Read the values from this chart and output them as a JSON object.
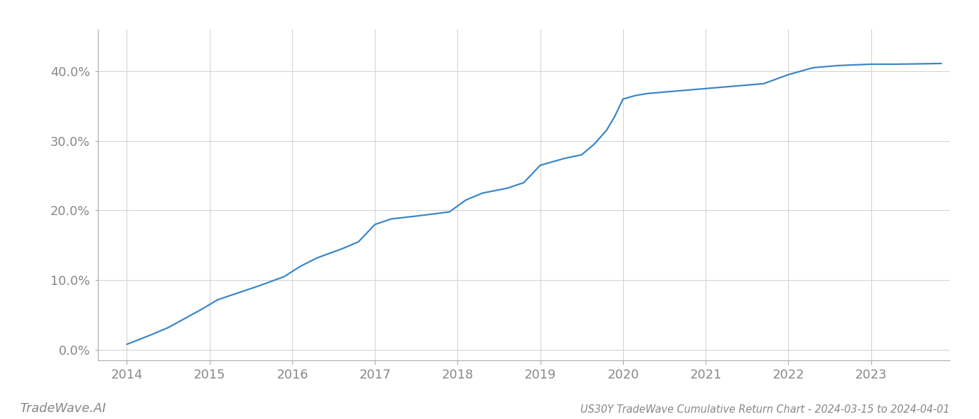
{
  "title": "US30Y TradeWave Cumulative Return Chart - 2024-03-15 to 2024-04-01",
  "watermark": "TradeWave.AI",
  "line_color": "#3a86c8",
  "background_color": "#ffffff",
  "grid_color": "#d0d0d0",
  "x_values": [
    2014.0,
    2014.15,
    2014.3,
    2014.5,
    2014.7,
    2014.9,
    2015.1,
    2015.3,
    2015.6,
    2015.9,
    2016.1,
    2016.3,
    2016.6,
    2016.8,
    2017.0,
    2017.2,
    2017.5,
    2017.7,
    2017.9,
    2018.1,
    2018.3,
    2018.6,
    2018.8,
    2019.0,
    2019.15,
    2019.3,
    2019.5,
    2019.65,
    2019.8,
    2019.9,
    2020.0,
    2020.15,
    2020.3,
    2020.5,
    2020.7,
    2020.9,
    2021.1,
    2021.4,
    2021.7,
    2022.0,
    2022.3,
    2022.6,
    2022.8,
    2023.0,
    2023.3,
    2023.6,
    2023.85
  ],
  "y_values": [
    0.8,
    1.5,
    2.2,
    3.2,
    4.5,
    5.8,
    7.2,
    8.0,
    9.2,
    10.5,
    12.0,
    13.2,
    14.5,
    15.5,
    18.0,
    18.8,
    19.2,
    19.5,
    19.8,
    21.5,
    22.5,
    23.2,
    24.0,
    26.5,
    27.0,
    27.5,
    28.0,
    29.5,
    31.5,
    33.5,
    36.0,
    36.5,
    36.8,
    37.0,
    37.2,
    37.4,
    37.6,
    37.9,
    38.2,
    39.5,
    40.5,
    40.8,
    40.9,
    41.0,
    41.0,
    41.05,
    41.1
  ],
  "xlim": [
    2013.65,
    2023.95
  ],
  "ylim": [
    -1.5,
    46.0
  ],
  "xticks": [
    2014,
    2015,
    2016,
    2017,
    2018,
    2019,
    2020,
    2021,
    2022,
    2023
  ],
  "yticks": [
    0,
    10,
    20,
    30,
    40
  ],
  "ytick_labels": [
    "0.0%",
    "10.0%",
    "20.0%",
    "30.0%",
    "40.0%"
  ],
  "line_width": 1.6,
  "figsize": [
    14.0,
    6.0
  ],
  "dpi": 100,
  "title_fontsize": 10.5,
  "watermark_fontsize": 13,
  "tick_fontsize": 13,
  "tick_color": "#888888",
  "spine_bottom_color": "#aaaaaa",
  "left_spine_color": "#aaaaaa"
}
